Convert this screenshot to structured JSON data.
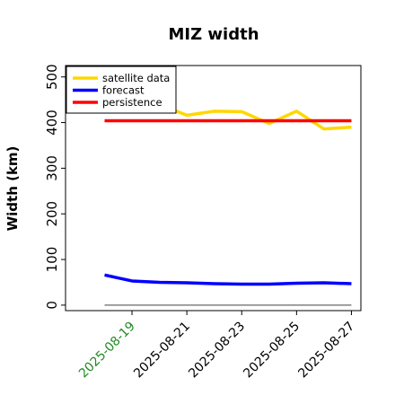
{
  "chart_data": {
    "type": "line",
    "title": "MIZ width",
    "xlabel": "",
    "ylabel": "Width (km)",
    "ylim": [
      -12,
      525
    ],
    "y_ticks": [
      "0",
      "100",
      "200",
      "300",
      "400",
      "500"
    ],
    "y_tick_values": [
      0,
      100,
      200,
      300,
      400,
      500
    ],
    "x": [
      "2025-08-18",
      "2025-08-19",
      "2025-08-20",
      "2025-08-21",
      "2025-08-22",
      "2025-08-23",
      "2025-08-24",
      "2025-08-25",
      "2025-08-26",
      "2025-08-27"
    ],
    "x_ticks": [
      "2025-08-19",
      "2025-08-21",
      "2025-08-23",
      "2025-08-25",
      "2025-08-27"
    ],
    "highlighted_tick": "2025-08-19",
    "highlight_color": "#228b22",
    "grid": false,
    "legend_position": "upper-left",
    "series": [
      {
        "name": "satellite data",
        "color": "#ffd700",
        "values": [
          null,
          null,
          440,
          416,
          425,
          424,
          398,
          425,
          386,
          390
        ]
      },
      {
        "name": "forecast",
        "color": "#0000ff",
        "values": [
          66,
          53,
          50,
          49,
          47,
          46,
          46,
          48,
          49,
          47
        ]
      },
      {
        "name": "persistence",
        "color": "#ff0000",
        "values": [
          404,
          404,
          404,
          404,
          404,
          404,
          404,
          404,
          404,
          404
        ]
      }
    ],
    "reference_line": {
      "value": 0,
      "color": "#808080"
    }
  }
}
